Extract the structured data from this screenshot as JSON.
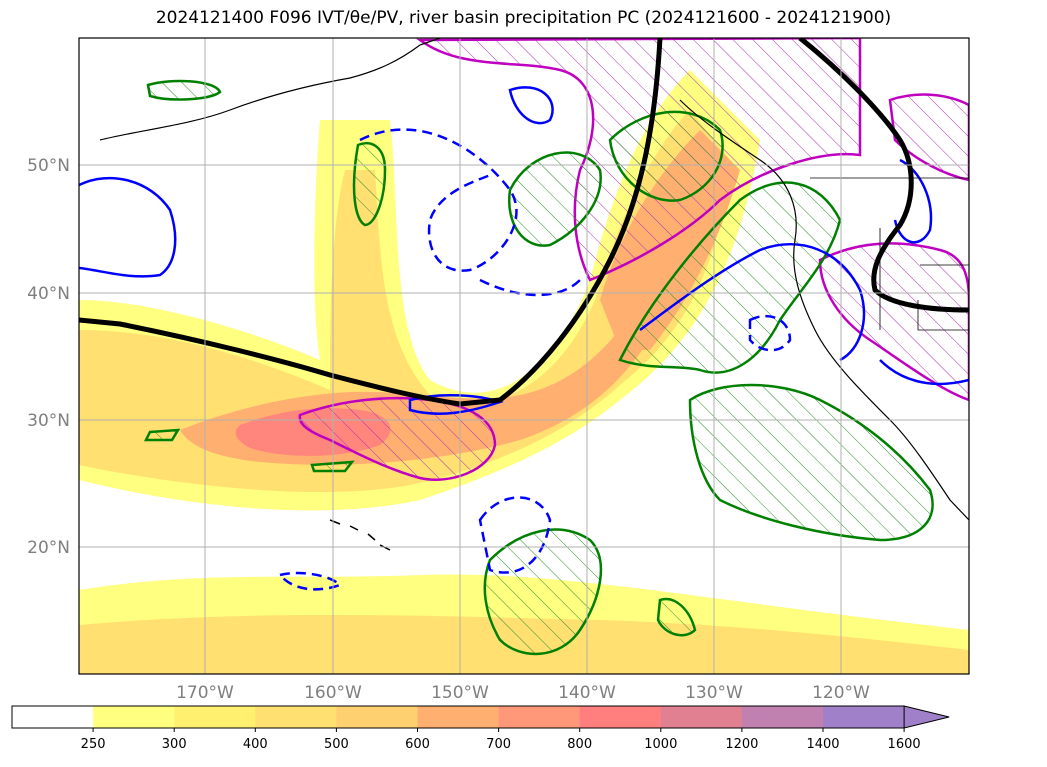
{
  "title": "2024121400 F096 IVT/θe/PV, river basin precipitation PC (2024121600 - 2024121900)",
  "map": {
    "lat_labels": [
      "50°N",
      "40°N",
      "30°N",
      "20°N"
    ],
    "lon_labels": [
      "170°W",
      "160°W",
      "150°W",
      "140°W",
      "130°W",
      "120°W"
    ]
  },
  "colorbar": {
    "ticks": [
      "250",
      "300",
      "400",
      "500",
      "600",
      "700",
      "800",
      "1000",
      "1200",
      "1400",
      "1600"
    ],
    "colors": [
      "#ffffff",
      "#ffff80",
      "#fff070",
      "#ffe070",
      "#ffd070",
      "#ffb070",
      "#ff9878",
      "#ff7f7f",
      "#e08090",
      "#c080b0",
      "#a080c8"
    ],
    "extend": "max"
  },
  "legend_colors": {
    "ivt_contour": "#0000ff",
    "theta_e_contour": "#008000",
    "pv_contour": "#c000c0",
    "front_line": "#000000",
    "gridline": "#b0b0b0"
  }
}
